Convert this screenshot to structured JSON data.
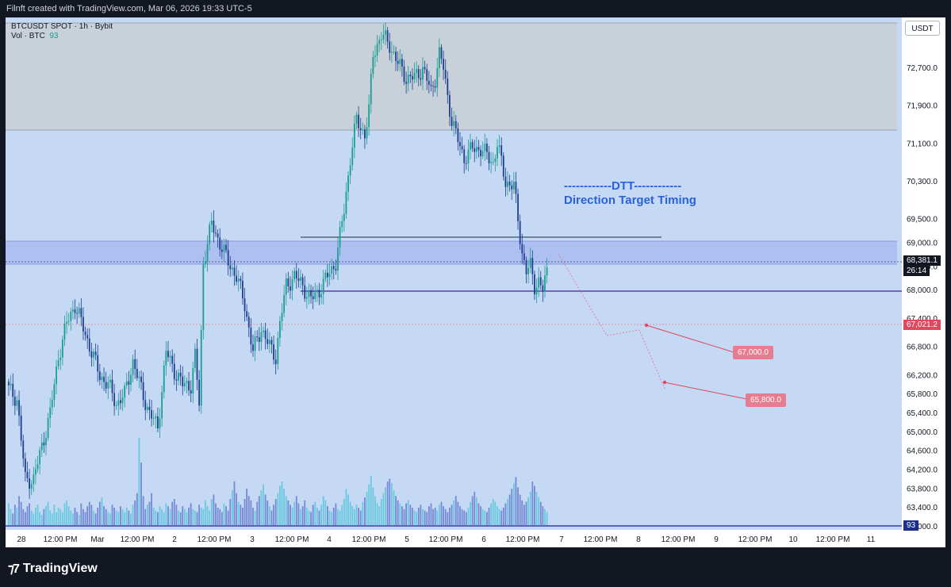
{
  "header": {
    "caption": "Filnft created with TradingView.com, Mar 06, 2026 19:33 UTC-5"
  },
  "legend": {
    "symbol": "BTCUSDT SPOT · 1h · Bybit",
    "volume_label": "Vol · BTC",
    "volume_value": "93"
  },
  "currency_button": "USDT",
  "annotation": {
    "line1": "------------DTT------------",
    "line2": "Direction Target Timing"
  },
  "targets": {
    "t1": "67,000.0",
    "t2": "65,800.0"
  },
  "price_badges": {
    "last_price": "68,381.1",
    "countdown": "26:14",
    "level": "67,021.2",
    "volume": "93"
  },
  "footer": {
    "brand": "TradingView"
  },
  "colors": {
    "up": "#1a9e8f",
    "down": "#1c3f8f",
    "zone_supply": "#c8d0d9",
    "zone_demand": "#aebff2",
    "target": "#e57c8f"
  },
  "chart_data": {
    "type": "candlestick",
    "symbol": "BTCUSDT SPOT",
    "interval": "1h",
    "exchange": "Bybit",
    "y_ticks": [
      "72,700.0",
      "71,900.0",
      "71,100.0",
      "70,300.0",
      "69,500.0",
      "69,000.0",
      "68,500.0",
      "68,000.0",
      "67,400.0",
      "66,800.0",
      "66,200.0",
      "65,800.0",
      "65,400.0",
      "65,000.0",
      "64,600.0",
      "64,200.0",
      "63,800.0",
      "63,400.0",
      "63,000.0"
    ],
    "x_ticks": [
      "28",
      "12:00 PM",
      "Mar",
      "12:00 PM",
      "2",
      "12:00 PM",
      "3",
      "12:00 PM",
      "4",
      "12:00 PM",
      "5",
      "12:00 PM",
      "6",
      "12:00 PM",
      "7",
      "12:00 PM",
      "8",
      "12:00 PM",
      "9",
      "12:00 PM",
      "10",
      "12:00 PM",
      "11"
    ],
    "ylim": [
      62800,
      73550
    ],
    "price_path": [
      [
        0,
        65900
      ],
      [
        4,
        65700
      ],
      [
        8,
        64000
      ],
      [
        12,
        64000
      ],
      [
        16,
        64700
      ],
      [
        20,
        65400
      ],
      [
        24,
        66600
      ],
      [
        28,
        67300
      ],
      [
        32,
        67700
      ],
      [
        36,
        67200
      ],
      [
        40,
        66700
      ],
      [
        44,
        66200
      ],
      [
        48,
        66000
      ],
      [
        52,
        65600
      ],
      [
        56,
        65800
      ],
      [
        60,
        66500
      ],
      [
        64,
        65900
      ],
      [
        68,
        65400
      ],
      [
        72,
        65100
      ],
      [
        76,
        66700
      ],
      [
        80,
        66300
      ],
      [
        84,
        66000
      ],
      [
        88,
        66000
      ],
      [
        90,
        66600
      ],
      [
        92,
        65600
      ],
      [
        94,
        68600
      ],
      [
        98,
        69400
      ],
      [
        102,
        69000
      ],
      [
        106,
        68600
      ],
      [
        110,
        68300
      ],
      [
        114,
        67700
      ],
      [
        118,
        66700
      ],
      [
        122,
        67200
      ],
      [
        126,
        66800
      ],
      [
        129,
        66600
      ],
      [
        131,
        67300
      ],
      [
        134,
        68100
      ],
      [
        138,
        68300
      ],
      [
        142,
        68100
      ],
      [
        146,
        67800
      ],
      [
        150,
        68000
      ],
      [
        154,
        68300
      ],
      [
        158,
        68600
      ],
      [
        162,
        69700
      ],
      [
        165,
        70800
      ],
      [
        168,
        71600
      ],
      [
        172,
        71300
      ],
      [
        174,
        71800
      ],
      [
        176,
        73000
      ],
      [
        180,
        73400
      ],
      [
        184,
        73200
      ],
      [
        188,
        72800
      ],
      [
        192,
        72500
      ],
      [
        196,
        72500
      ],
      [
        200,
        72700
      ],
      [
        204,
        72200
      ],
      [
        206,
        72500
      ],
      [
        208,
        73000
      ],
      [
        210,
        72700
      ],
      [
        212,
        72100
      ],
      [
        214,
        71600
      ],
      [
        216,
        71300
      ],
      [
        220,
        70800
      ],
      [
        224,
        71000
      ],
      [
        228,
        71000
      ],
      [
        230,
        70900
      ],
      [
        234,
        70700
      ],
      [
        236,
        71100
      ],
      [
        240,
        70300
      ],
      [
        244,
        70200
      ],
      [
        246,
        69500
      ],
      [
        248,
        68800
      ],
      [
        250,
        68400
      ],
      [
        252,
        68500
      ],
      [
        254,
        68100
      ],
      [
        256,
        68200
      ],
      [
        258,
        68000
      ],
      [
        260,
        68380
      ]
    ],
    "volume_max": 1000,
    "volume": [
      150,
      110,
      80,
      140,
      120,
      200,
      160,
      110,
      90,
      130,
      150,
      100,
      80,
      120,
      140,
      90,
      70,
      110,
      130,
      160,
      100,
      80,
      140,
      90,
      120,
      110,
      90,
      150,
      170,
      130,
      100,
      80,
      120,
      90,
      70,
      150,
      110,
      90,
      130,
      160,
      140,
      100,
      80,
      120,
      160,
      190,
      130,
      110,
      90,
      80,
      140,
      120,
      100,
      90,
      130,
      110,
      90,
      120,
      100,
      80,
      140,
      170,
      220,
      600,
      430,
      200,
      110,
      140,
      160,
      220,
      120,
      100,
      90,
      130,
      110,
      90,
      150,
      130,
      110,
      160,
      180,
      140,
      100,
      90,
      130,
      110,
      90,
      120,
      150,
      110,
      100,
      90,
      140,
      120,
      110,
      170,
      130,
      100,
      180,
      210,
      150,
      120,
      110,
      90,
      150,
      130,
      100,
      180,
      240,
      300,
      220,
      160,
      140,
      120,
      180,
      250,
      200,
      170,
      120,
      100,
      160,
      200,
      240,
      280,
      210,
      170,
      130,
      100,
      140,
      180,
      220,
      270,
      300,
      250,
      200,
      170,
      140,
      120,
      160,
      200,
      150,
      110,
      130,
      170,
      120,
      100,
      90,
      140,
      160,
      120,
      100,
      140,
      200,
      170,
      130,
      100,
      90,
      120,
      150,
      110,
      100,
      140,
      180,
      250,
      210,
      160,
      130,
      110,
      140,
      120,
      100,
      160,
      190,
      230,
      280,
      340,
      260,
      200,
      150,
      130,
      180,
      220,
      260,
      300,
      320,
      290,
      240,
      200,
      170,
      150,
      130,
      110,
      150,
      170,
      140,
      120,
      100,
      90,
      120,
      140,
      110,
      100,
      90,
      130,
      150,
      110,
      120,
      100,
      140,
      160,
      130,
      110,
      90,
      120,
      140,
      170,
      200,
      160,
      130,
      110,
      100,
      90,
      120,
      160,
      200,
      230,
      190,
      150,
      130,
      110,
      100,
      90,
      120,
      150,
      180,
      160,
      130,
      110,
      100,
      120,
      150,
      180,
      210,
      250,
      290,
      330,
      260,
      210,
      170,
      140,
      160,
      190,
      230,
      300,
      270,
      230,
      190,
      160,
      130,
      110,
      90,
      70,
      50,
      40
    ]
  }
}
